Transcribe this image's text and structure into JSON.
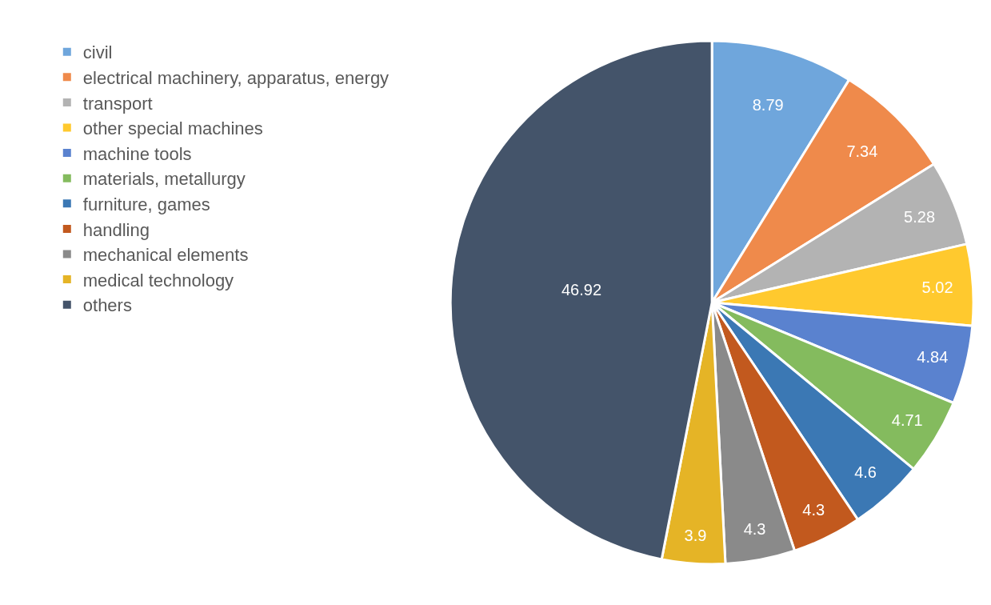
{
  "chart_data": {
    "type": "pie",
    "categories": [
      "civil",
      "electrical machinery, apparatus, energy",
      "transport",
      "other special machines",
      "machine tools",
      "materials, metallurgy",
      "furniture, games",
      "handling",
      "mechanical elements",
      "medical technology",
      "others"
    ],
    "values": [
      8.79,
      7.34,
      5.28,
      5.02,
      4.84,
      4.71,
      4.6,
      4.3,
      4.3,
      3.9,
      46.92
    ],
    "colors": [
      "#6fa6dc",
      "#ef8a4b",
      "#b3b3b3",
      "#ffc92e",
      "#5a82cf",
      "#84bb5e",
      "#3b78b4",
      "#c2591e",
      "#8a8a8a",
      "#e5b426",
      "#44546a"
    ],
    "data_labels": true,
    "legend": "left"
  }
}
